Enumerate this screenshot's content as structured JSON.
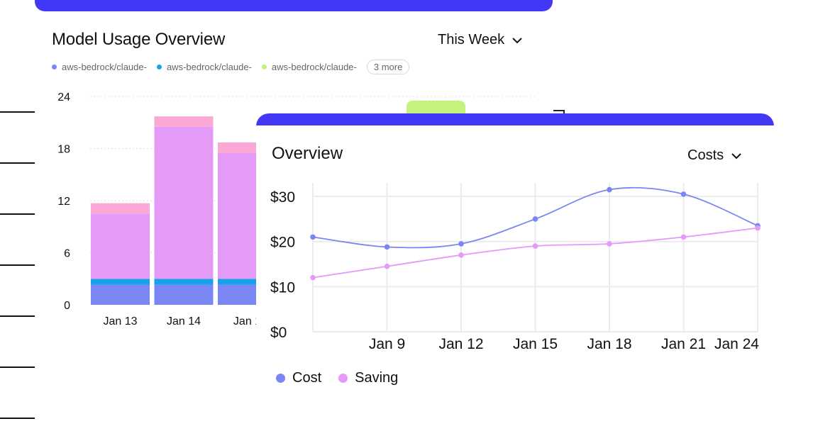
{
  "usage_card": {
    "title": "Model Usage Overview",
    "range_label": "This Week",
    "legend": [
      {
        "label": "aws-bedrock/claude-",
        "color": "#7b86f5"
      },
      {
        "label": "aws-bedrock/claude-",
        "color": "#1aa0e8"
      },
      {
        "label": "aws-bedrock/claude-",
        "color": "#c4f27a"
      }
    ],
    "more_label": "3 more"
  },
  "overview_card": {
    "title": "Overview",
    "metric_label": "Costs",
    "legend": [
      {
        "label": "Cost",
        "color": "#7b86f5"
      },
      {
        "label": "Saving",
        "color": "#e49af7"
      }
    ]
  },
  "chart_data": [
    {
      "type": "bar",
      "stacked": true,
      "categories": [
        "Jan 13",
        "Jan 14",
        "Jan 1"
      ],
      "series": [
        {
          "color": "#7b86f5",
          "values": [
            2.3,
            2.3,
            2.3
          ]
        },
        {
          "color": "#1aa0e8",
          "values": [
            0.7,
            0.7,
            0.7
          ]
        },
        {
          "color": "#e49af7",
          "values": [
            7.5,
            17.5,
            14.5
          ]
        },
        {
          "color": "#fba8d5",
          "values": [
            1.2,
            1.2,
            1.2
          ]
        }
      ],
      "yticks": [
        0,
        6,
        12,
        18,
        24
      ],
      "ylim": [
        0,
        24
      ],
      "grid": true
    },
    {
      "type": "line",
      "x_ticks": [
        "Jan 9",
        "Jan 12",
        "Jan 15",
        "Jan 18",
        "Jan 21",
        "Jan 24"
      ],
      "y_ticks": [
        "$0",
        "$10",
        "$20",
        "$30"
      ],
      "ylim": [
        0,
        33
      ],
      "series": [
        {
          "name": "Cost",
          "color": "#7b86f5",
          "x": [
            6,
            9,
            12,
            15,
            18,
            21,
            24
          ],
          "values": [
            21,
            18.8,
            19.5,
            25,
            31.5,
            30.5,
            23.5
          ]
        },
        {
          "name": "Saving",
          "color": "#e49af7",
          "x": [
            6,
            9,
            12,
            15,
            18,
            21,
            24
          ],
          "values": [
            12,
            14.5,
            17,
            19,
            19.5,
            21,
            23
          ]
        }
      ],
      "xlim": [
        6,
        24
      ],
      "grid": true,
      "legend_position": "bottom-left"
    }
  ]
}
